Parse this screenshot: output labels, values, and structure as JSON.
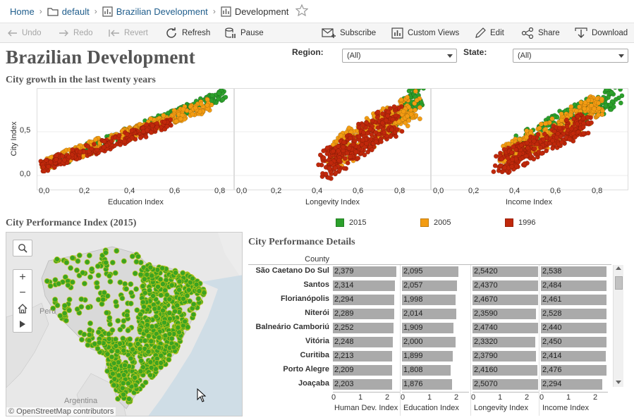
{
  "breadcrumb": {
    "home": "Home",
    "folder": "default",
    "workbook": "Brazilian Development",
    "view": "Development"
  },
  "toolbar": {
    "undo": "Undo",
    "redo": "Redo",
    "revert": "Revert",
    "refresh": "Refresh",
    "pause": "Pause",
    "subscribe": "Subscribe",
    "custom_views": "Custom Views",
    "edit": "Edit",
    "share": "Share",
    "download": "Download"
  },
  "dashboard": {
    "title": "Brazilian Development",
    "region_label": "Region:",
    "region_value": "(All)",
    "state_label": "State:",
    "state_value": "(All)"
  },
  "scatter": {
    "title": "City growth in the last twenty years",
    "ylabel": "City Index",
    "y_ticks": [
      "0,5",
      "0,0"
    ],
    "x_ticks": [
      "0,0",
      "0,2",
      "0,4",
      "0,6",
      "0,8"
    ],
    "panels": [
      "Education Index",
      "Longevity Index",
      "Income Index"
    ]
  },
  "legend": [
    {
      "label": "2015",
      "color": "#2ca02c"
    },
    {
      "label": "2005",
      "color": "#f39c12"
    },
    {
      "label": "1996",
      "color": "#c0280b"
    }
  ],
  "map": {
    "title": "City Performance Index (2015)",
    "label_peru": "Peru",
    "label_argentina": "Argentina",
    "attribution": "© OpenStreetMap contributors",
    "controls": {
      "search_icon": "search-icon",
      "zoom_in": "+",
      "zoom_out": "−"
    }
  },
  "details": {
    "title": "City Performance Details",
    "row_header": "County",
    "columns": [
      "Human Dev. Index",
      "Education Index",
      "Longevity Index",
      "Income Index"
    ],
    "axis_ticks": [
      "0",
      "1",
      "2"
    ],
    "rows": [
      {
        "city": "São Caetano Do Sul",
        "values": [
          "2,379",
          "2,095",
          "2,5420",
          "2,538"
        ]
      },
      {
        "city": "Santos",
        "values": [
          "2,314",
          "2,057",
          "2,4370",
          "2,484"
        ]
      },
      {
        "city": "Florianópolis",
        "values": [
          "2,294",
          "1,998",
          "2,4670",
          "2,461"
        ]
      },
      {
        "city": "Niterói",
        "values": [
          "2,289",
          "2,014",
          "2,3590",
          "2,528"
        ]
      },
      {
        "city": "Balneário Camboriú",
        "values": [
          "2,252",
          "1,909",
          "2,4740",
          "2,440"
        ]
      },
      {
        "city": "Vitória",
        "values": [
          "2,248",
          "2,000",
          "2,3320",
          "2,450"
        ]
      },
      {
        "city": "Curitiba",
        "values": [
          "2,213",
          "1,899",
          "2,3790",
          "2,414"
        ]
      },
      {
        "city": "Porto Alegre",
        "values": [
          "2,209",
          "1,808",
          "2,4160",
          "2,476"
        ]
      },
      {
        "city": "Joaçaba",
        "values": [
          "2,203",
          "1,876",
          "2,5070",
          "2,294"
        ]
      }
    ]
  }
}
